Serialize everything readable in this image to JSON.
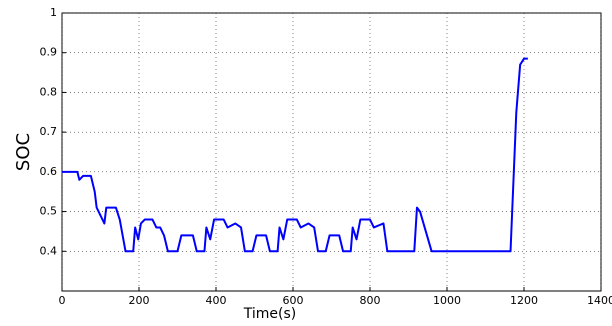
{
  "chart_data": {
    "type": "line",
    "xlabel": "Time(s)",
    "ylabel": "SOC",
    "x": [
      0,
      40,
      45,
      55,
      75,
      85,
      90,
      110,
      115,
      140,
      150,
      165,
      185,
      190,
      198,
      205,
      215,
      235,
      245,
      255,
      265,
      275,
      300,
      310,
      340,
      350,
      370,
      375,
      385,
      395,
      420,
      430,
      450,
      465,
      475,
      495,
      505,
      530,
      540,
      560,
      565,
      575,
      585,
      610,
      620,
      640,
      655,
      665,
      685,
      695,
      720,
      730,
      750,
      755,
      765,
      775,
      800,
      810,
      835,
      845,
      915,
      922,
      930,
      960,
      1150,
      1165,
      1180,
      1190,
      1200,
      1210
    ],
    "series": [
      {
        "name": "SOC",
        "color": "#0000ff",
        "values": [
          0.6,
          0.6,
          0.58,
          0.59,
          0.59,
          0.55,
          0.51,
          0.47,
          0.51,
          0.51,
          0.48,
          0.4,
          0.4,
          0.46,
          0.43,
          0.47,
          0.48,
          0.48,
          0.46,
          0.46,
          0.44,
          0.4,
          0.4,
          0.44,
          0.44,
          0.4,
          0.4,
          0.46,
          0.43,
          0.48,
          0.48,
          0.46,
          0.47,
          0.46,
          0.4,
          0.4,
          0.44,
          0.44,
          0.4,
          0.4,
          0.46,
          0.43,
          0.48,
          0.48,
          0.46,
          0.47,
          0.46,
          0.4,
          0.4,
          0.44,
          0.44,
          0.4,
          0.4,
          0.46,
          0.43,
          0.48,
          0.48,
          0.46,
          0.47,
          0.4,
          0.4,
          0.51,
          0.5,
          0.4,
          0.4,
          0.4,
          0.75,
          0.87,
          0.885,
          0.885
        ]
      }
    ],
    "xlim": [
      0,
      1400
    ],
    "xticks": [
      0,
      200,
      400,
      600,
      800,
      1000,
      1200,
      1400
    ],
    "ylim": [
      0.3,
      1
    ],
    "yticks": [
      0.4,
      0.5,
      0.6,
      0.7,
      0.8,
      0.9,
      1
    ],
    "grid": true
  }
}
